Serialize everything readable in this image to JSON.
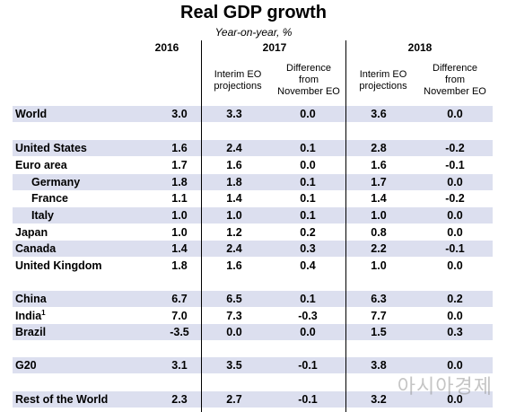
{
  "title": "Real GDP growth",
  "subtitle": "Year-on-year, %",
  "years": [
    "2016",
    "2017",
    "2018"
  ],
  "subheaders": {
    "interim": [
      "Interim EO",
      "projections"
    ],
    "difference": [
      "Difference",
      "from",
      "November EO"
    ]
  },
  "rows": [
    {
      "name": "World",
      "v": [
        "3.0",
        "3.3",
        "0.0",
        "3.6",
        "0.0"
      ]
    },
    {
      "name": "United States",
      "v": [
        "1.6",
        "2.4",
        "0.1",
        "2.8",
        "-0.2"
      ]
    },
    {
      "name": "Euro area",
      "v": [
        "1.7",
        "1.6",
        "0.0",
        "1.6",
        "-0.1"
      ]
    },
    {
      "name": "Germany",
      "v": [
        "1.8",
        "1.8",
        "0.1",
        "1.7",
        "0.0"
      ]
    },
    {
      "name": "France",
      "v": [
        "1.1",
        "1.4",
        "0.1",
        "1.4",
        "-0.2"
      ]
    },
    {
      "name": "Italy",
      "v": [
        "1.0",
        "1.0",
        "0.1",
        "1.0",
        "0.0"
      ]
    },
    {
      "name": "Japan",
      "v": [
        "1.0",
        "1.2",
        "0.2",
        "0.8",
        "0.0"
      ]
    },
    {
      "name": "Canada",
      "v": [
        "1.4",
        "2.4",
        "0.3",
        "2.2",
        "-0.1"
      ]
    },
    {
      "name": "United Kingdom",
      "v": [
        "1.8",
        "1.6",
        "0.4",
        "1.0",
        "0.0"
      ]
    },
    {
      "name": "China",
      "v": [
        "6.7",
        "6.5",
        "0.1",
        "6.3",
        "0.2"
      ]
    },
    {
      "name": "India",
      "sup": "1",
      "v": [
        "7.0",
        "7.3",
        "-0.3",
        "7.7",
        "0.0"
      ]
    },
    {
      "name": "Brazil",
      "v": [
        "-3.5",
        "0.0",
        "0.0",
        "1.5",
        "0.3"
      ]
    },
    {
      "name": "G20",
      "v": [
        "3.1",
        "3.5",
        "-0.1",
        "3.8",
        "0.0"
      ]
    },
    {
      "name": "Rest of the World",
      "v": [
        "2.3",
        "2.7",
        "-0.1",
        "3.2",
        "0.0"
      ]
    }
  ],
  "watermark": "아시아경제"
}
